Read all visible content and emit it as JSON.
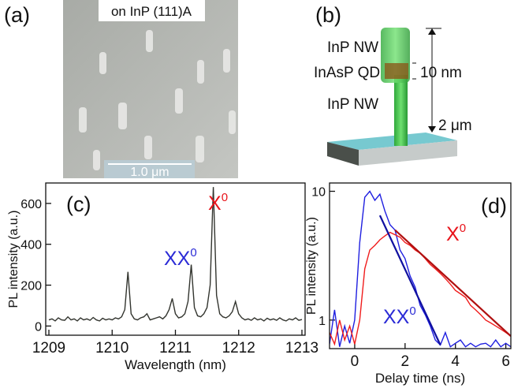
{
  "panels": {
    "a": {
      "label": "(a)",
      "caption": "on InP (111)A",
      "scale_bar": "1.0 μm"
    },
    "b": {
      "label": "(b)",
      "top_nw": "InP NW",
      "qd": "InAsP QD",
      "qd_size": "10 nm",
      "bottom_nw": "InP NW",
      "length": "2 μm"
    }
  },
  "chart_data": [
    {
      "type": "line",
      "panel_label": "(c)",
      "x_label": "Wavelength (nm)",
      "y_label": "PL intensity (a.u.)",
      "xlim": [
        1208.95,
        1213.05
      ],
      "xticks": [
        1209,
        1210,
        1211,
        1212,
        1213
      ],
      "ylim": [
        -45,
        700
      ],
      "yticks": [
        0,
        200,
        400,
        600
      ],
      "log_y": false,
      "series": [
        {
          "color": "#33352f",
          "x": [
            1209.0,
            1209.05,
            1209.1,
            1209.15,
            1209.2,
            1209.25,
            1209.3,
            1209.35,
            1209.4,
            1209.45,
            1209.5,
            1209.55,
            1209.6,
            1209.65,
            1209.7,
            1209.75,
            1209.8,
            1209.85,
            1209.9,
            1209.95,
            1210.0,
            1210.05,
            1210.1,
            1210.15,
            1210.2,
            1210.25,
            1210.3,
            1210.35,
            1210.4,
            1210.45,
            1210.5,
            1210.55,
            1210.6,
            1210.65,
            1210.7,
            1210.75,
            1210.8,
            1210.85,
            1210.9,
            1210.95,
            1211.0,
            1211.05,
            1211.1,
            1211.15,
            1211.2,
            1211.25,
            1211.3,
            1211.35,
            1211.4,
            1211.45,
            1211.5,
            1211.55,
            1211.6,
            1211.65,
            1211.7,
            1211.75,
            1211.8,
            1211.85,
            1211.9,
            1211.95,
            1212.0,
            1212.05,
            1212.1,
            1212.15,
            1212.2,
            1212.25,
            1212.3,
            1212.35,
            1212.4,
            1212.45,
            1212.5,
            1212.55,
            1212.6,
            1212.65,
            1212.7,
            1212.75,
            1212.8,
            1212.85,
            1212.9,
            1212.95,
            1213.0
          ],
          "values": [
            30,
            35,
            25,
            40,
            30,
            28,
            45,
            30,
            35,
            25,
            40,
            30,
            35,
            28,
            42,
            30,
            25,
            38,
            30,
            35,
            30,
            40,
            35,
            45,
            80,
            265,
            60,
            35,
            30,
            40,
            45,
            60,
            30,
            35,
            40,
            45,
            35,
            50,
            80,
            135,
            60,
            40,
            45,
            60,
            120,
            300,
            90,
            50,
            45,
            60,
            90,
            200,
            680,
            150,
            60,
            45,
            40,
            50,
            70,
            120,
            60,
            40,
            30,
            35,
            28,
            40,
            30,
            35,
            25,
            38,
            30,
            35,
            28,
            40,
            30,
            25,
            35,
            30,
            40,
            28,
            32
          ]
        }
      ],
      "annotations": [
        {
          "text": "XX",
          "superscript": "0",
          "color": "#2b2bd6"
        },
        {
          "text": "X",
          "superscript": "0",
          "color": "#e8141b"
        }
      ]
    },
    {
      "type": "line",
      "panel_label": "(d)",
      "x_label": "Delay time (ns)",
      "y_label": "PL intensity (a.u.)",
      "xlim": [
        -1,
        6.2
      ],
      "xticks": [
        0,
        2,
        4,
        6
      ],
      "ylim": [
        0.6,
        11.6
      ],
      "yticks": [
        1,
        10
      ],
      "log_y": true,
      "series": [
        {
          "color": "#1f1fe0",
          "x": [
            -1,
            -0.8,
            -0.6,
            -0.4,
            -0.2,
            0,
            0.2,
            0.4,
            0.6,
            0.8,
            1,
            1.2,
            1.4,
            1.6,
            1.8,
            2,
            2.2,
            2.4,
            2.6,
            2.8,
            3,
            3.2,
            3.4,
            3.6,
            3.8,
            4,
            4.2,
            4.4,
            4.6,
            4.8,
            5,
            5.2,
            5.4,
            5.6,
            5.8,
            6,
            6.2
          ],
          "values": [
            0.65,
            1.2,
            0.62,
            0.9,
            0.66,
            1.0,
            4,
            9,
            10,
            8.5,
            9.5,
            7,
            5.5,
            5,
            3.5,
            3,
            2.2,
            1.8,
            1.3,
            1.1,
            0.9,
            0.7,
            0.64,
            0.8,
            0.62,
            0.66,
            0.7,
            0.62,
            0.66,
            0.62,
            0.65,
            0.66,
            0.62,
            0.7,
            0.62,
            0.66,
            0.62
          ]
        },
        {
          "color": "#f01c1c",
          "x": [
            -1,
            -0.8,
            -0.6,
            -0.4,
            -0.2,
            0,
            0.2,
            0.4,
            0.6,
            0.8,
            1,
            1.2,
            1.4,
            1.6,
            1.8,
            2,
            2.2,
            2.4,
            2.6,
            2.8,
            3,
            3.2,
            3.4,
            3.6,
            3.8,
            4,
            4.2,
            4.4,
            4.6,
            4.8,
            5,
            5.2,
            5.4,
            5.6,
            5.8,
            6,
            6.2
          ],
          "values": [
            0.8,
            0.65,
            1.0,
            0.7,
            0.9,
            0.65,
            1.0,
            2.5,
            3.5,
            3.8,
            4.2,
            4.5,
            4.8,
            4.6,
            4.4,
            4.0,
            3.8,
            3.5,
            3.3,
            3.0,
            2.7,
            2.5,
            2.3,
            2.1,
            1.9,
            1.7,
            1.6,
            1.5,
            1.3,
            1.2,
            1.1,
            1.0,
            0.95,
            0.9,
            0.85,
            0.8,
            0.75
          ]
        },
        {
          "color": "#1010a0",
          "x": [
            1.0,
            3.4
          ],
          "values": [
            6.5,
            0.64
          ]
        },
        {
          "color": "#b01010",
          "x": [
            1.6,
            6.2
          ],
          "values": [
            5,
            0.75
          ]
        }
      ],
      "annotations": [
        {
          "text": "X",
          "superscript": "0",
          "color": "#e8141b"
        },
        {
          "text": "XX",
          "superscript": "0",
          "color": "#2b2bd6"
        }
      ]
    }
  ]
}
